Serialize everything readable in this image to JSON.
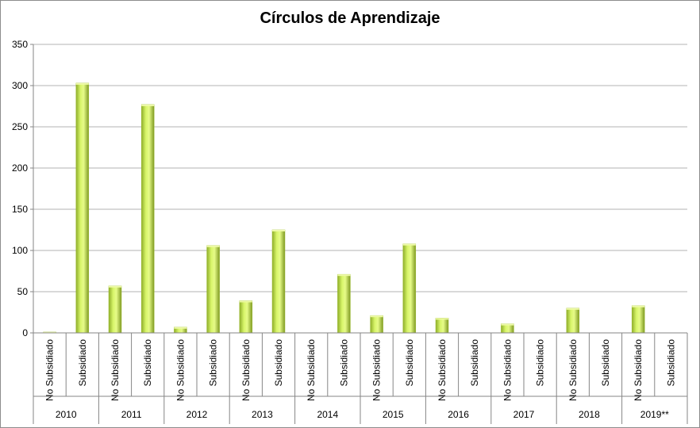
{
  "chart_data": {
    "type": "bar",
    "title": "Círculos de Aprendizaje",
    "xlabel": "",
    "ylabel": "",
    "ylim": [
      0,
      350
    ],
    "yticks": [
      0,
      50,
      100,
      150,
      200,
      250,
      300,
      350
    ],
    "grid": true,
    "legend": "none",
    "groups": [
      "2010",
      "2011",
      "2012",
      "2013",
      "2014",
      "2015",
      "2016",
      "2017",
      "2018",
      "2019**"
    ],
    "subcategories": [
      "No Subsidiado",
      "Subsidiado"
    ],
    "values": [
      [
        1,
        303
      ],
      [
        57,
        277
      ],
      [
        7,
        106
      ],
      [
        39,
        125
      ],
      [
        0,
        71
      ],
      [
        21,
        108
      ],
      [
        18,
        0
      ],
      [
        11,
        0
      ],
      [
        30,
        0
      ],
      [
        33,
        0
      ]
    ],
    "bar_color": "#c5e84a"
  }
}
